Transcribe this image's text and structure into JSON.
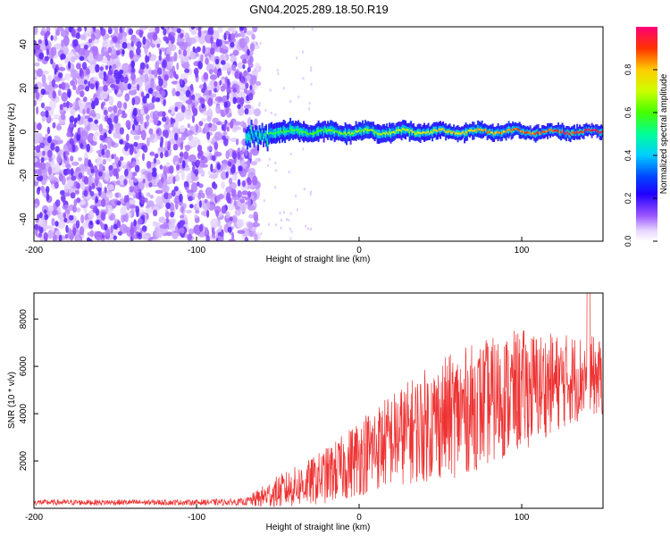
{
  "title": "GN04.2025.289.18.50.R19",
  "chart_data": [
    {
      "type": "heatmap",
      "xlabel": "Height of straight line (km)",
      "ylabel": "Frequency (Hz)",
      "xlim": [
        -200,
        150
      ],
      "ylim": [
        -50,
        48
      ],
      "xticks": [
        -200,
        -100,
        0,
        100
      ],
      "yticks": [
        -40,
        -20,
        0,
        20,
        40
      ],
      "colorbar": {
        "label": "Normalized spectral amplitude",
        "range": [
          0,
          1
        ],
        "ticks": [
          0,
          0.2,
          0.4,
          0.6,
          0.8
        ],
        "tick_labels": [
          "0.0",
          "0.2",
          "0.4",
          "0.6",
          "0.8"
        ]
      },
      "description_points": {
        "noise_region_x": [
          -200,
          -62
        ],
        "signal_line_x": [
          -70,
          150
        ],
        "signal_center_hz": 0
      }
    },
    {
      "type": "line",
      "xlabel": "Height of straight line (km)",
      "ylabel": "SNR (10 * v/v)",
      "xlim": [
        -200,
        150
      ],
      "ylim": [
        0,
        9100
      ],
      "xticks": [
        -200,
        -100,
        0,
        100
      ],
      "yticks": [
        2000,
        4000,
        6000,
        8000
      ],
      "series": [
        {
          "name": "SNR",
          "color": "#ee3333",
          "envelope_x": [
            -200,
            -150,
            -100,
            -70,
            -62,
            -50,
            -30,
            -10,
            0,
            20,
            40,
            60,
            80,
            100,
            120,
            140,
            150
          ],
          "envelope_mean": [
            250,
            250,
            250,
            270,
            420,
            700,
            1100,
            1700,
            2200,
            2900,
            3500,
            4000,
            4500,
            5000,
            5300,
            5600,
            5500
          ],
          "envelope_spread": [
            120,
            120,
            120,
            150,
            400,
            700,
            1000,
            1400,
            1700,
            2000,
            2400,
            2700,
            2700,
            2600,
            2100,
            1800,
            1600
          ],
          "peak_max": 9100
        }
      ]
    }
  ]
}
